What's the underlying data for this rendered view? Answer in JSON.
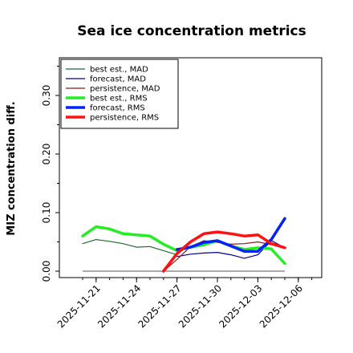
{
  "chart_data": {
    "type": "line",
    "title": "Sea ice concentration metrics",
    "ylabel": "MIZ concentration diff.",
    "xlabel": "",
    "x": [
      "2025-11-20",
      "2025-11-21",
      "2025-11-22",
      "2025-11-23",
      "2025-11-24",
      "2025-11-25",
      "2025-11-26",
      "2025-11-27",
      "2025-11-28",
      "2025-11-29",
      "2025-11-30",
      "2025-12-01",
      "2025-12-02",
      "2025-12-03",
      "2025-12-04",
      "2025-12-05"
    ],
    "xticks": [
      "2025-11-21",
      "2025-11-24",
      "2025-11-27",
      "2025-11-30",
      "2025-12-03",
      "2025-12-06"
    ],
    "xtick_highlight": "2025-11-27",
    "xtick_highlight_color": "#228B22",
    "ylim": [
      0.0,
      0.36
    ],
    "yticks": [
      "0.00",
      "0.10",
      "0.20",
      "0.30"
    ],
    "grid": false,
    "legend_position": "top-left",
    "zero_line": true,
    "series": [
      {
        "name": "best est., MAD",
        "color": "#1f6b2e",
        "width": 1.2,
        "values": [
          0.047,
          0.054,
          0.051,
          0.047,
          0.041,
          0.042,
          0.035,
          0.028,
          null,
          null,
          null,
          null,
          null,
          null,
          null,
          null
        ]
      },
      {
        "name": "forecast,  MAD",
        "color": "#00008b",
        "width": 1.2,
        "values": [
          null,
          null,
          null,
          null,
          null,
          null,
          null,
          0.025,
          0.029,
          0.031,
          0.032,
          0.028,
          0.022,
          0.028,
          0.052,
          0.04
        ]
      },
      {
        "name": "persistence, MAD",
        "color": "#8b1a1a",
        "width": 1.2,
        "values": [
          null,
          null,
          null,
          null,
          null,
          null,
          0.0,
          0.02,
          0.042,
          0.052,
          0.049,
          0.046,
          0.047,
          0.05,
          0.045,
          0.04
        ]
      },
      {
        "name": "best est., RMS",
        "color": "#22ee22",
        "width": 3.5,
        "values": [
          0.06,
          0.076,
          0.072,
          0.064,
          0.062,
          0.06,
          0.046,
          0.035,
          0.041,
          0.045,
          0.052,
          0.043,
          0.037,
          0.04,
          0.038,
          0.013
        ]
      },
      {
        "name": "forecast,  RMS",
        "color": "#0022ff",
        "width": 3.5,
        "values": [
          null,
          null,
          null,
          null,
          null,
          null,
          null,
          0.037,
          0.041,
          0.049,
          0.052,
          0.043,
          0.034,
          0.034,
          0.054,
          0.09
        ]
      },
      {
        "name": "persistence, RMS",
        "color": "#ff1111",
        "width": 3.5,
        "values": [
          null,
          null,
          null,
          null,
          null,
          null,
          0.0,
          0.03,
          0.05,
          0.064,
          0.067,
          0.064,
          0.06,
          0.062,
          0.047,
          0.04
        ]
      }
    ]
  }
}
